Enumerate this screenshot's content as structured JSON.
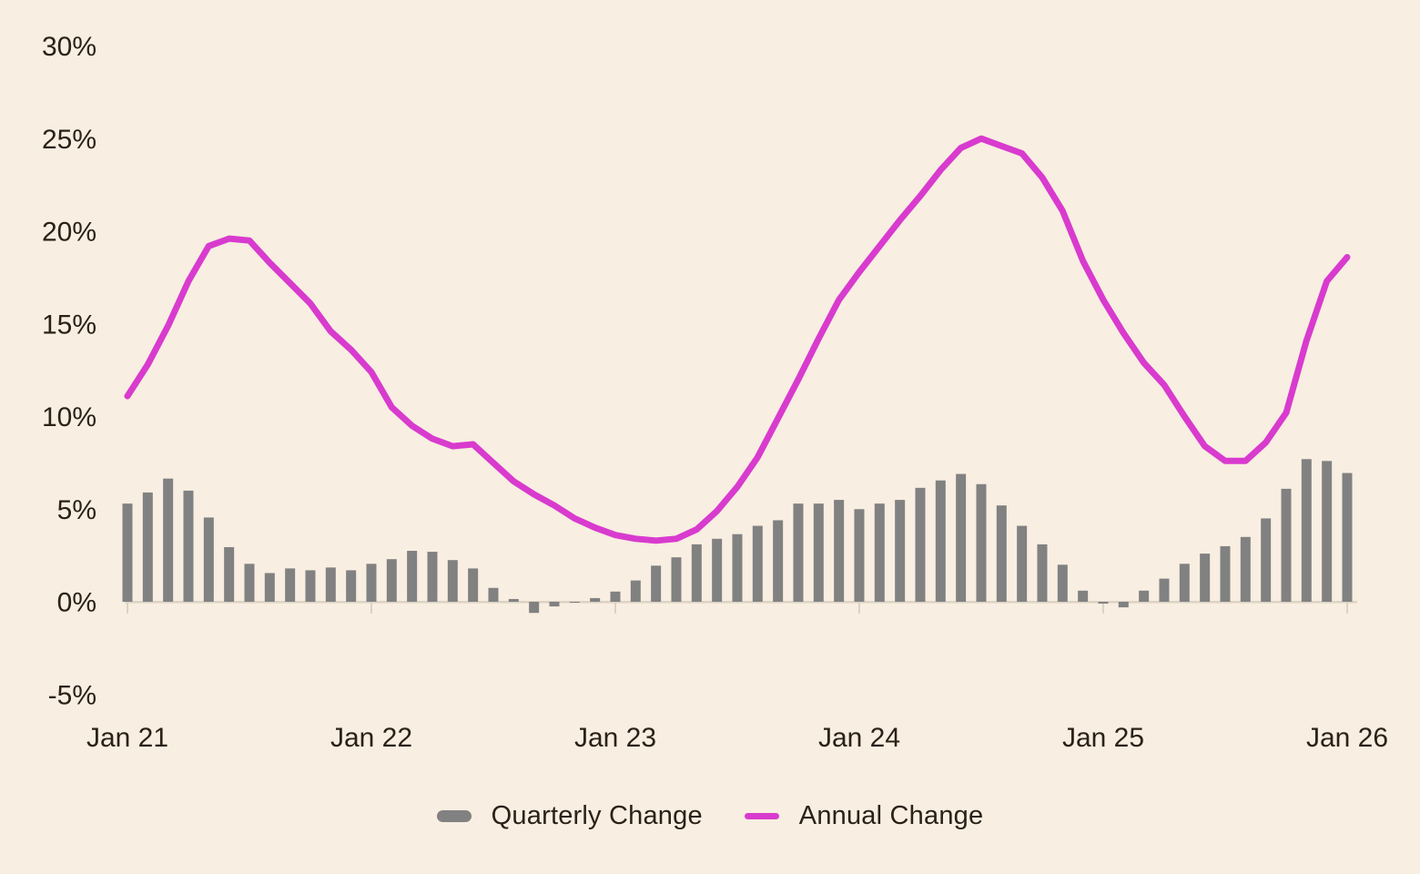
{
  "chart_data": {
    "type": "bar+line",
    "title": "",
    "x_axis": {
      "tick_labels": [
        "Jan 21",
        "Jan 22",
        "Jan 23",
        "Jan 24",
        "Jan 25",
        "Jan 26"
      ],
      "tick_point_indexes": [
        0,
        12,
        24,
        36,
        48,
        60
      ],
      "points_are": "monthly observations from Jan 2021 to Jan 2026"
    },
    "y_axis": {
      "tick_labels": [
        "30%",
        "25%",
        "20%",
        "15%",
        "10%",
        "5%",
        "0%",
        "-5%"
      ],
      "tick_values": [
        30,
        25,
        20,
        15,
        10,
        5,
        0,
        -5
      ],
      "unit": "%",
      "ylim": [
        -5,
        30
      ],
      "grid": false
    },
    "legend_position": "bottom",
    "series": [
      {
        "name": "Quarterly Change",
        "type": "bar",
        "color": "#818181",
        "values": [
          5.3,
          5.9,
          6.65,
          6.0,
          4.55,
          2.95,
          2.05,
          1.55,
          1.8,
          1.7,
          1.85,
          1.7,
          2.05,
          2.3,
          2.75,
          2.7,
          2.25,
          1.8,
          0.75,
          0.15,
          -0.6,
          -0.25,
          -0.05,
          0.2,
          0.55,
          1.15,
          1.95,
          2.4,
          3.1,
          3.4,
          3.65,
          4.1,
          4.4,
          5.3,
          5.3,
          5.5,
          5.0,
          5.3,
          5.5,
          6.15,
          6.55,
          6.9,
          6.35,
          5.2,
          4.1,
          3.1,
          2.0,
          0.6,
          -0.1,
          -0.3,
          0.6,
          1.25,
          2.05,
          2.6,
          3.0,
          3.5,
          4.5,
          6.1,
          7.7,
          7.6,
          6.95
        ]
      },
      {
        "name": "Annual Change",
        "type": "line",
        "color": "#d83bce",
        "values": [
          11.1,
          12.8,
          14.9,
          17.3,
          19.2,
          19.6,
          19.5,
          18.3,
          17.2,
          16.1,
          14.6,
          13.6,
          12.4,
          10.5,
          9.5,
          8.8,
          8.4,
          8.5,
          7.5,
          6.5,
          5.8,
          5.2,
          4.5,
          4.0,
          3.6,
          3.4,
          3.3,
          3.4,
          3.9,
          4.9,
          6.2,
          7.8,
          9.9,
          12.0,
          14.2,
          16.3,
          17.8,
          19.2,
          20.6,
          21.9,
          23.3,
          24.5,
          25.0,
          24.6,
          24.2,
          22.9,
          21.1,
          18.4,
          16.3,
          14.5,
          12.9,
          11.7,
          10.0,
          8.4,
          7.6,
          7.6,
          8.6,
          10.2,
          14.1,
          17.3,
          18.6
        ]
      }
    ]
  },
  "legend": {
    "quarterly_label": "Quarterly Change",
    "annual_label": "Annual Change"
  },
  "colors": {
    "background": "#f8eee1",
    "bar": "#818181",
    "line": "#d83bce",
    "text": "#2a2118",
    "axis": "#ddd3c4"
  }
}
